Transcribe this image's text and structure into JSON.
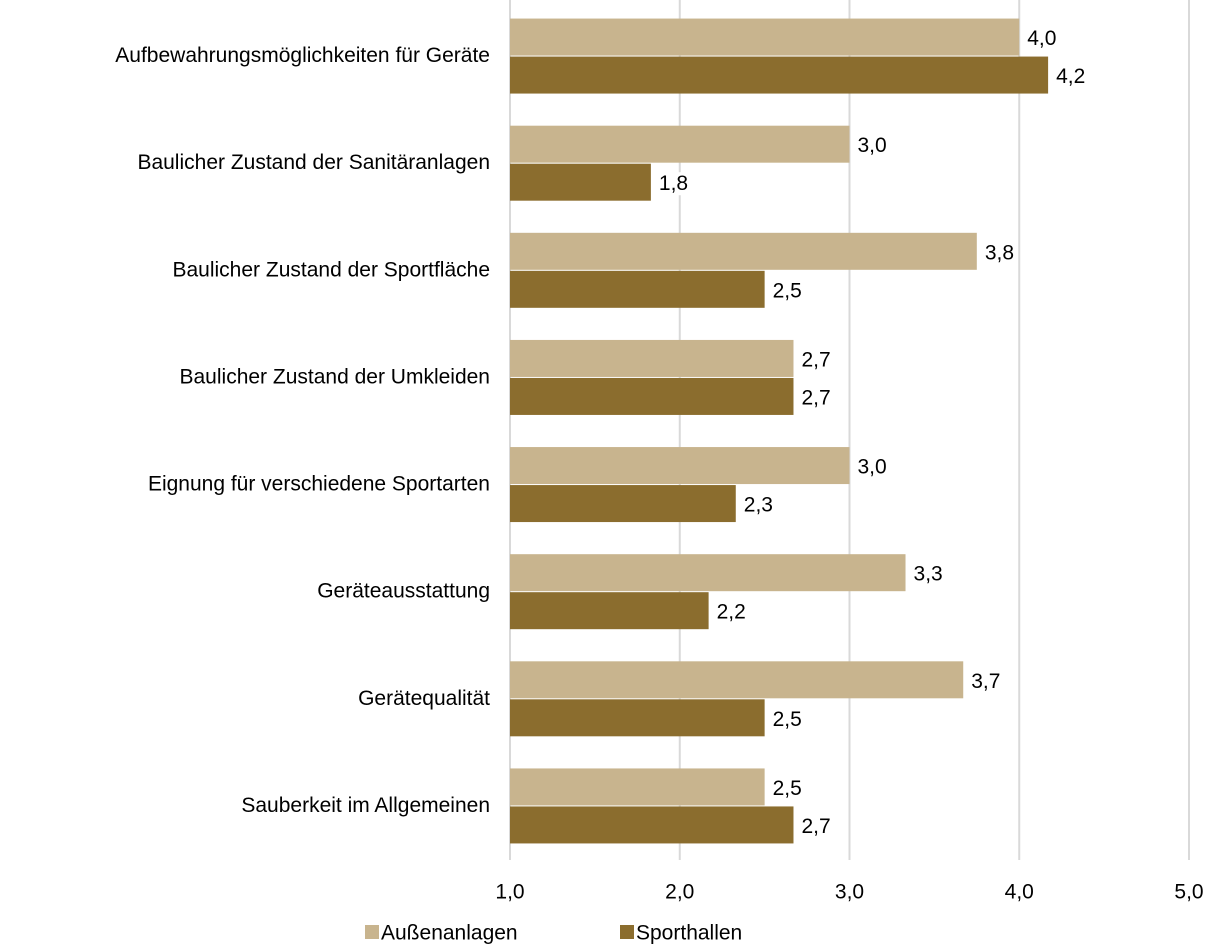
{
  "chart_data": {
    "type": "hbar",
    "categories": [
      "Aufbewahrungsmöglichkeiten für Geräte",
      "Baulicher Zustand der Sanitäranlagen",
      "Baulicher Zustand der Sportfläche",
      "Baulicher Zustand der Umkleiden",
      "Eignung für verschiedene Sportarten",
      "Geräteausstattung",
      "Gerätequalität",
      "Sauberkeit im Allgemeinen"
    ],
    "series": [
      {
        "name": "Außenanlagen",
        "color": "#c8b48e",
        "values": [
          4.0,
          3.0,
          3.75,
          2.67,
          3.0,
          3.33,
          3.67,
          2.5
        ],
        "value_labels": [
          "4,0",
          "3,0",
          "3,8",
          "2,7",
          "3,0",
          "3,3",
          "3,7",
          "2,5"
        ]
      },
      {
        "name": "Sporthallen",
        "color": "#8b6d2e",
        "values": [
          4.17,
          1.83,
          2.5,
          2.67,
          2.33,
          2.17,
          2.5,
          2.67
        ],
        "value_labels": [
          "4,2",
          "1,8",
          "2,5",
          "2,7",
          "2,3",
          "2,2",
          "2,5",
          "2,7"
        ]
      }
    ],
    "xlim": [
      1,
      5
    ],
    "xticks": [
      {
        "value": 1,
        "label": "1,0"
      },
      {
        "value": 2,
        "label": "2,0"
      },
      {
        "value": 3,
        "label": "3,0"
      },
      {
        "value": 4,
        "label": "4,0"
      },
      {
        "value": 5,
        "label": "5,0"
      }
    ],
    "grid": true,
    "legend": "bottom"
  }
}
